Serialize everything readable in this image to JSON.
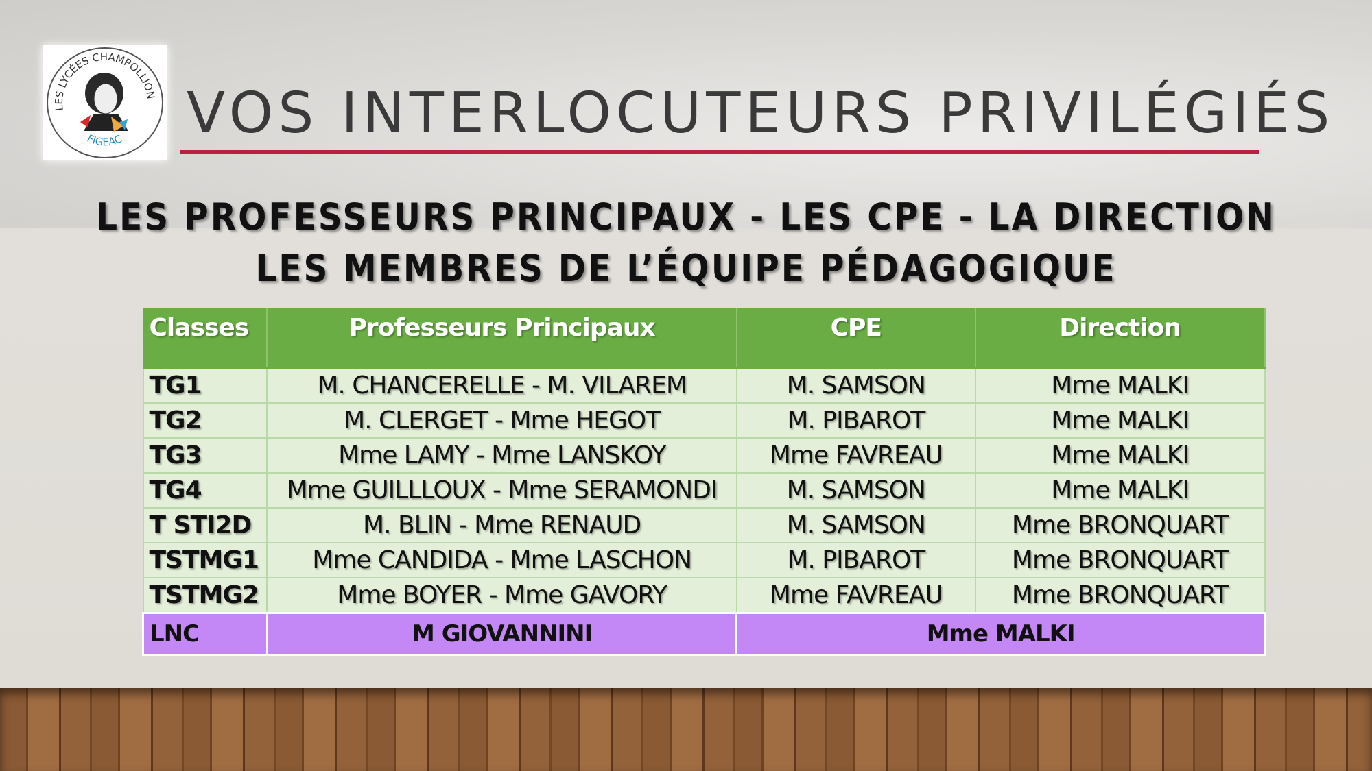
{
  "logo": {
    "text_top": "LES LYCÉES CHAMPOLLION",
    "text_bottom": "FIGEAC"
  },
  "title": "VOS INTERLOCUTEURS PRIVILÉGIÉS",
  "subtitle_line1": "LES PROFESSEURS PRINCIPAUX -  LES CPE - LA DIRECTION",
  "subtitle_line2": "LES MEMBRES DE L’ÉQUIPE PÉDAGOGIQUE",
  "table": {
    "headers": [
      "Classes",
      "Professeurs Principaux",
      "CPE",
      "Direction"
    ],
    "rows": [
      [
        "TG1",
        "M. CHANCERELLE - M. VILAREM",
        "M. SAMSON",
        "Mme MALKI"
      ],
      [
        "TG2",
        "M. CLERGET - Mme HEGOT",
        "M. PIBAROT",
        "Mme MALKI"
      ],
      [
        "TG3",
        "Mme LAMY - Mme LANSKOY",
        "Mme FAVREAU",
        "Mme MALKI"
      ],
      [
        "TG4",
        "Mme GUILLLOUX - Mme SERAMONDI",
        "M. SAMSON",
        "Mme MALKI"
      ],
      [
        "T STI2D",
        "M. BLIN - Mme RENAUD",
        "M. SAMSON",
        "Mme BRONQUART"
      ],
      [
        "TSTMG1",
        "Mme CANDIDA - Mme LASCHON",
        "M. PIBAROT",
        "Mme BRONQUART"
      ],
      [
        "TSTMG2",
        "Mme BOYER - Mme GAVORY",
        "Mme FAVREAU",
        "Mme BRONQUART"
      ]
    ],
    "lnc": [
      "LNC",
      "M GIOVANNINI",
      "Mme MALKI"
    ]
  },
  "colors": {
    "header_green": "#6aad45",
    "row_green": "#e3efd9",
    "lnc_purple": "#c388f5",
    "rule_red": "#b8213f"
  }
}
